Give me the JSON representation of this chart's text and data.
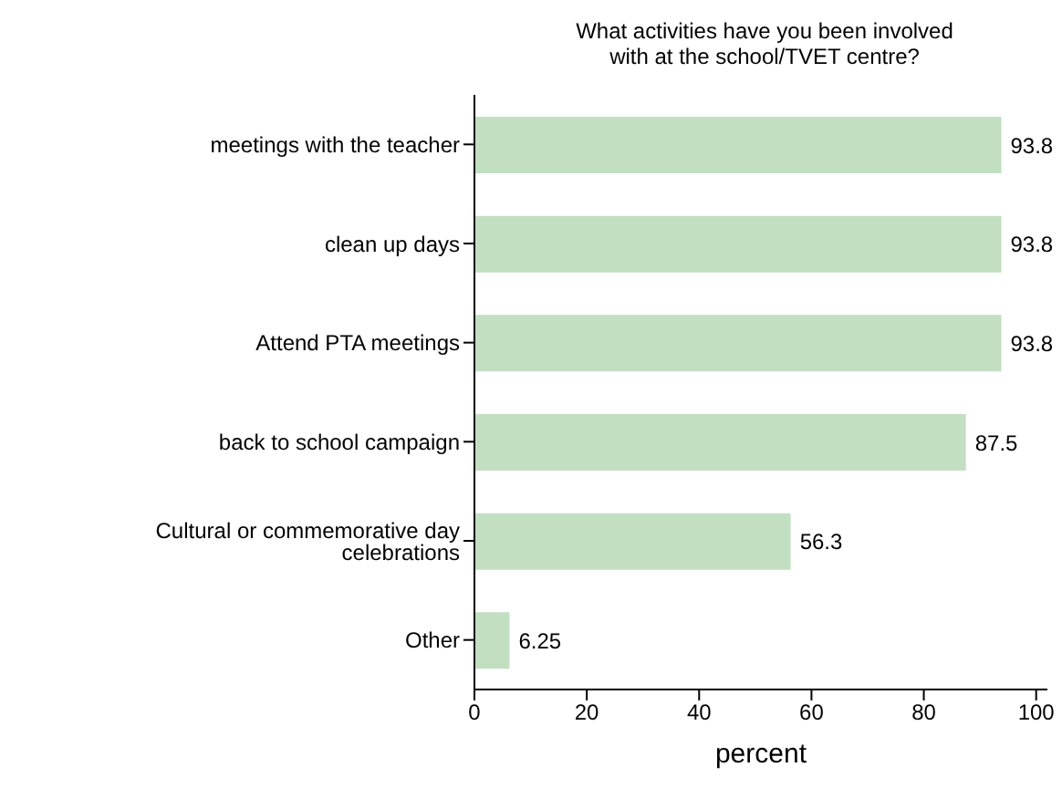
{
  "chart_data": {
    "type": "bar",
    "orientation": "horizontal",
    "title": "What activities have you been involved\nwith at the school/TVET centre?",
    "xlabel": "percent",
    "categories": [
      "meetings with the teacher",
      "clean up days",
      "Attend PTA meetings",
      "back to school campaign",
      "Cultural or commemorative day celebrations",
      "Other"
    ],
    "values": [
      93.8,
      93.8,
      93.8,
      87.5,
      56.3,
      6.25
    ],
    "color": "#c2dfc2",
    "xlim": [
      0,
      102
    ],
    "xticks": [
      0,
      20,
      40,
      60,
      80,
      100
    ],
    "grid": false,
    "legend": false,
    "data_labels": true
  }
}
